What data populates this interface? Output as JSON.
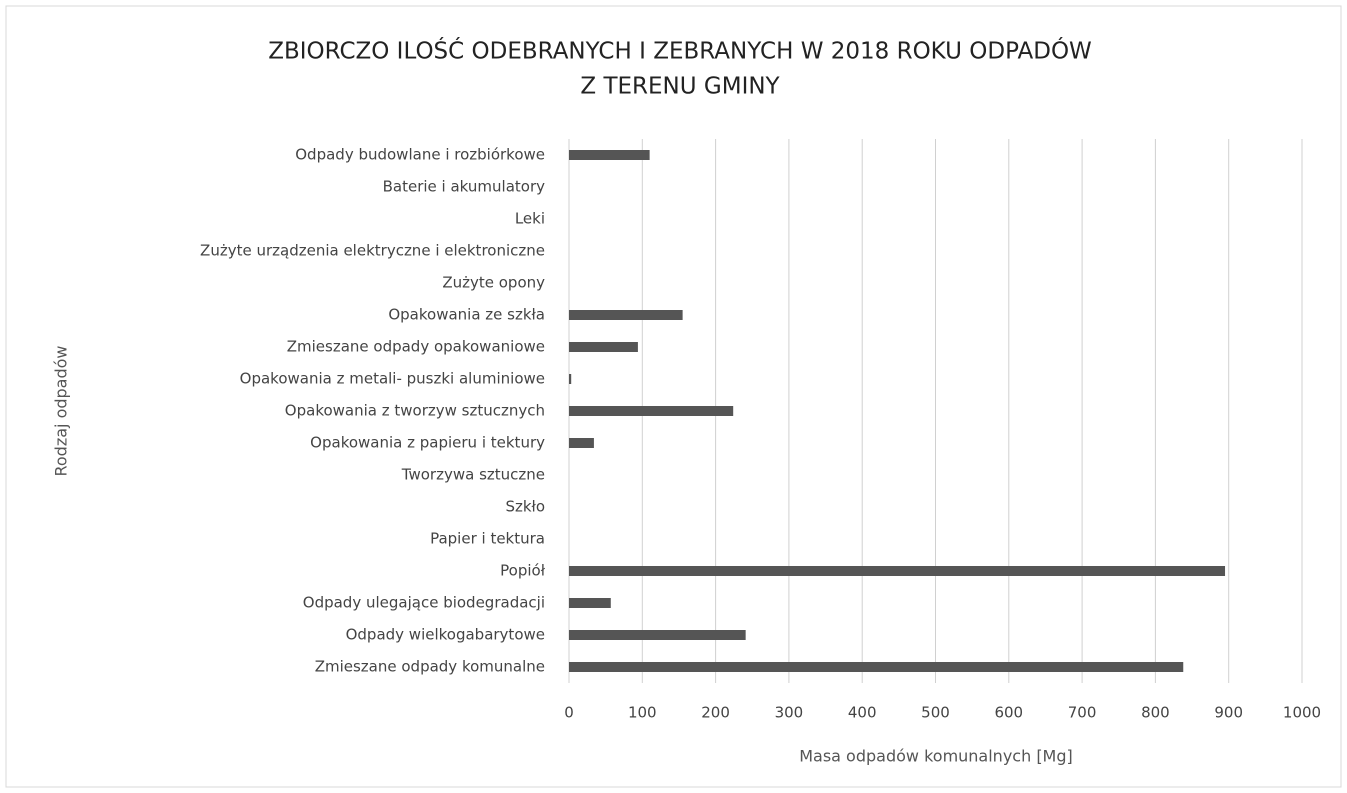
{
  "chart_data": {
    "type": "barh",
    "title": [
      "ZBIORCZO ILOŚĆ ODEBRANYCH I ZEBRANYCH W 2018 ROKU ODPADÓW",
      "Z TERENU GMINY"
    ],
    "xlabel": "Masa odpadów komunalnych [Mg]",
    "ylabel": "Rodzaj odpadów",
    "categories": [
      "Odpady budowlane i rozbiórkowe",
      "Baterie i akumulatory",
      "Leki",
      "Zużyte urządzenia elektryczne i elektroniczne",
      "Zużyte opony",
      "Opakowania ze szkła",
      "Zmieszane odpady opakowaniowe",
      "Opakowania z metali- puszki aluminiowe",
      "Opakowania z tworzyw sztucznych",
      "Opakowania z papieru i tektury",
      "Tworzywa sztuczne",
      "Szkło",
      "Papier i tektura",
      "Popiół",
      "Odpady ulegające biodegradacji",
      "Odpady wielkogabarytowe",
      "Zmieszane odpady komunalne"
    ],
    "values": [
      110,
      0,
      0,
      0,
      0,
      155,
      94,
      3,
      224,
      34,
      0,
      0,
      0,
      895,
      57,
      241,
      838
    ],
    "color": "#555555",
    "xlim": [
      0,
      1000
    ],
    "xticks": [
      0,
      100,
      200,
      300,
      400,
      500,
      600,
      700,
      800,
      900,
      1000
    ],
    "grid": true
  }
}
